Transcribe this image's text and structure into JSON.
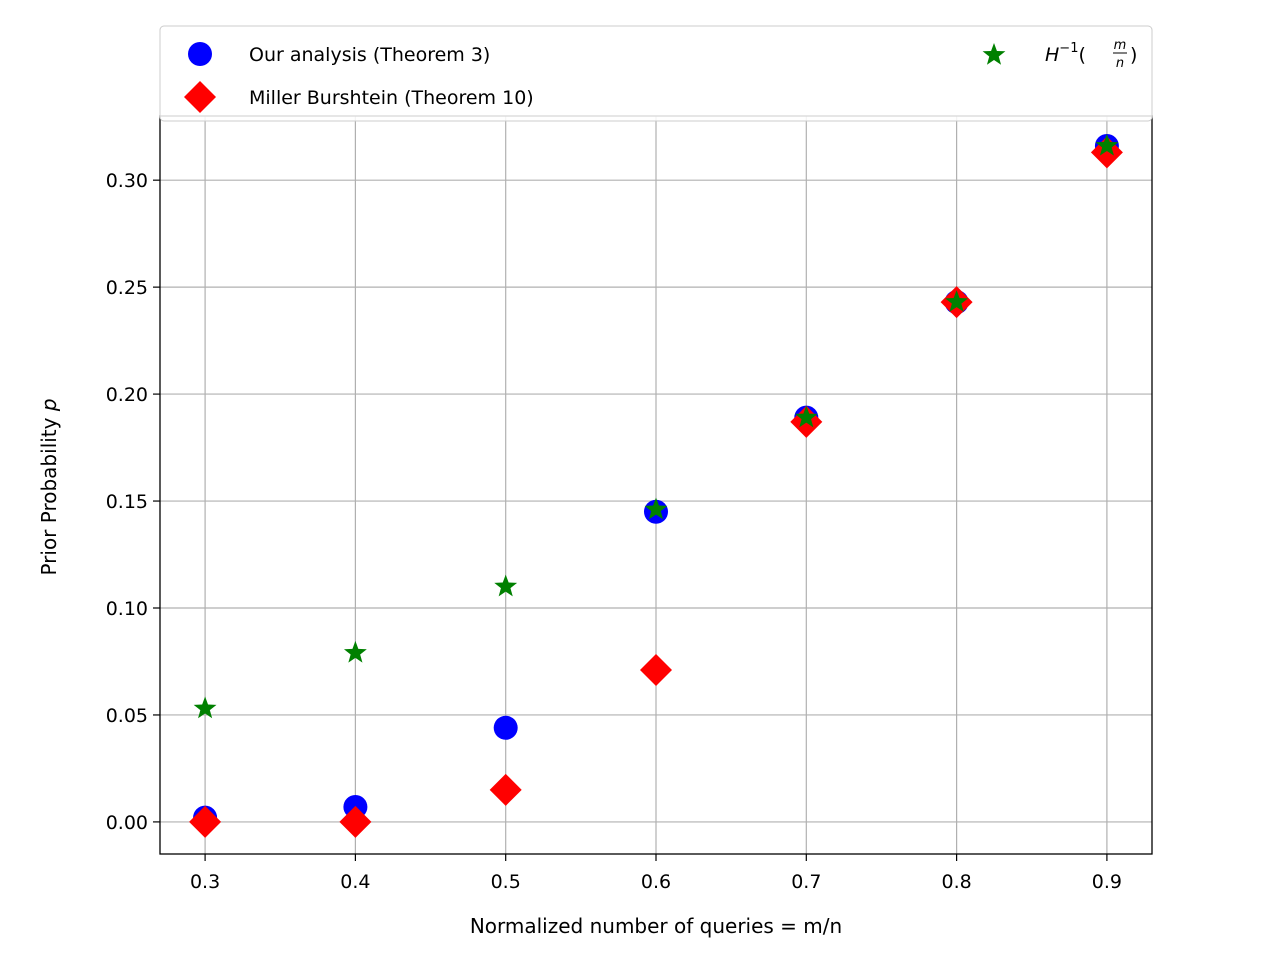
{
  "chart_data": {
    "type": "scatter",
    "title": "",
    "xlabel": "Normalized number of queries = m/n",
    "ylabel_main": "Prior Probability ",
    "ylabel_var": "p",
    "x": [
      0.3,
      0.4,
      0.5,
      0.6,
      0.7,
      0.8,
      0.9
    ],
    "xlim": [
      0.27,
      0.93
    ],
    "ylim": [
      -0.015,
      0.33
    ],
    "x_ticks": [
      "0.3",
      "0.4",
      "0.5",
      "0.6",
      "0.7",
      "0.8",
      "0.9"
    ],
    "y_ticks": [
      "0.00",
      "0.05",
      "0.10",
      "0.15",
      "0.20",
      "0.25",
      "0.30"
    ],
    "grid": true,
    "legend_position": "top",
    "series": [
      {
        "name": "Our analysis (Theorem 3)",
        "marker": "circle",
        "color": "#0000ff",
        "values": [
          0.002,
          0.007,
          0.044,
          0.145,
          0.189,
          0.243,
          0.316
        ]
      },
      {
        "name": "Miller Burshtein (Theorem 10)",
        "marker": "diamond",
        "color": "#ff0000",
        "values": [
          0.0,
          0.0,
          0.015,
          0.071,
          0.187,
          0.243,
          0.313
        ]
      },
      {
        "name": "H-1(m/n)",
        "marker": "star",
        "color": "#008000",
        "values": [
          0.053,
          0.079,
          0.11,
          0.146,
          0.189,
          0.243,
          0.316
        ]
      }
    ],
    "legend_third_label": {
      "base": "H",
      "sup": "−1",
      "open": "(",
      "num": "m",
      "den": "n",
      "close": ")"
    }
  }
}
